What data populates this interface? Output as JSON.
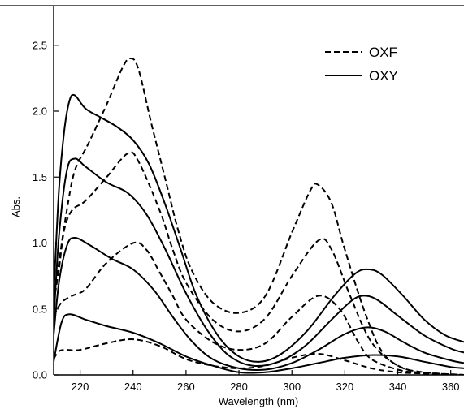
{
  "chart_data": {
    "type": "line",
    "title": "",
    "xlabel": "Wavelength (nm)",
    "ylabel": "Abs.",
    "xlim": [
      210,
      365
    ],
    "ylim": [
      0,
      2.8
    ],
    "xticks": [
      "220",
      "240",
      "260",
      "280",
      "300",
      "320",
      "340",
      "360"
    ],
    "yticks": [
      "0.0",
      "0.5",
      "1.0",
      "1.5",
      "2.0",
      "2.5"
    ],
    "legend": {
      "placement": "top-right",
      "entries": [
        {
          "label": "OXF",
          "style": "dashed"
        },
        {
          "label": "OXY",
          "style": "solid"
        }
      ]
    },
    "grid": false,
    "series": [
      {
        "group": "OXF",
        "style": "dashed",
        "points": [
          [
            210,
            0.12
          ],
          [
            212,
            0.18
          ],
          [
            215,
            0.19
          ],
          [
            220,
            0.19
          ],
          [
            230,
            0.24
          ],
          [
            240,
            0.27
          ],
          [
            250,
            0.22
          ],
          [
            260,
            0.12
          ],
          [
            270,
            0.07
          ],
          [
            280,
            0.05
          ],
          [
            290,
            0.07
          ],
          [
            300,
            0.13
          ],
          [
            310,
            0.16
          ],
          [
            320,
            0.11
          ],
          [
            330,
            0.05
          ],
          [
            340,
            0.02
          ],
          [
            350,
            0.01
          ],
          [
            360,
            0.0
          ],
          [
            365,
            0.0
          ]
        ]
      },
      {
        "group": "OXF",
        "style": "dashed",
        "points": [
          [
            210,
            0.45
          ],
          [
            213,
            0.55
          ],
          [
            217,
            0.6
          ],
          [
            222,
            0.65
          ],
          [
            230,
            0.85
          ],
          [
            240,
            1.0
          ],
          [
            245,
            0.95
          ],
          [
            250,
            0.78
          ],
          [
            255,
            0.6
          ],
          [
            260,
            0.42
          ],
          [
            270,
            0.25
          ],
          [
            280,
            0.19
          ],
          [
            290,
            0.24
          ],
          [
            300,
            0.44
          ],
          [
            310,
            0.6
          ],
          [
            318,
            0.5
          ],
          [
            325,
            0.25
          ],
          [
            330,
            0.12
          ],
          [
            340,
            0.04
          ],
          [
            350,
            0.01
          ],
          [
            365,
            0.0
          ]
        ]
      },
      {
        "group": "OXF",
        "style": "dashed",
        "points": [
          [
            210,
            0.55
          ],
          [
            212,
            0.8
          ],
          [
            214,
            1.1
          ],
          [
            217,
            1.25
          ],
          [
            222,
            1.32
          ],
          [
            230,
            1.5
          ],
          [
            238,
            1.68
          ],
          [
            242,
            1.62
          ],
          [
            250,
            1.25
          ],
          [
            255,
            0.95
          ],
          [
            260,
            0.7
          ],
          [
            270,
            0.42
          ],
          [
            280,
            0.33
          ],
          [
            290,
            0.43
          ],
          [
            300,
            0.75
          ],
          [
            310,
            1.02
          ],
          [
            315,
            0.95
          ],
          [
            322,
            0.6
          ],
          [
            330,
            0.25
          ],
          [
            340,
            0.07
          ],
          [
            350,
            0.02
          ],
          [
            365,
            0.0
          ]
        ]
      },
      {
        "group": "OXF",
        "style": "dashed",
        "points": [
          [
            210,
            0.55
          ],
          [
            212,
            0.85
          ],
          [
            215,
            1.25
          ],
          [
            218,
            1.55
          ],
          [
            223,
            1.75
          ],
          [
            230,
            2.05
          ],
          [
            236,
            2.33
          ],
          [
            239,
            2.4
          ],
          [
            242,
            2.32
          ],
          [
            247,
            1.9
          ],
          [
            252,
            1.5
          ],
          [
            257,
            1.1
          ],
          [
            262,
            0.8
          ],
          [
            270,
            0.55
          ],
          [
            280,
            0.47
          ],
          [
            290,
            0.6
          ],
          [
            300,
            1.08
          ],
          [
            307,
            1.4
          ],
          [
            310,
            1.44
          ],
          [
            315,
            1.3
          ],
          [
            320,
            0.95
          ],
          [
            328,
            0.45
          ],
          [
            335,
            0.15
          ],
          [
            345,
            0.03
          ],
          [
            355,
            0.01
          ],
          [
            365,
            0.0
          ]
        ]
      },
      {
        "group": "OXY",
        "style": "solid",
        "points": [
          [
            210,
            0.1
          ],
          [
            213,
            0.4
          ],
          [
            216,
            0.46
          ],
          [
            222,
            0.42
          ],
          [
            230,
            0.37
          ],
          [
            240,
            0.32
          ],
          [
            250,
            0.24
          ],
          [
            260,
            0.14
          ],
          [
            270,
            0.07
          ],
          [
            280,
            0.02
          ],
          [
            290,
            0.02
          ],
          [
            300,
            0.05
          ],
          [
            310,
            0.09
          ],
          [
            320,
            0.13
          ],
          [
            330,
            0.15
          ],
          [
            340,
            0.14
          ],
          [
            350,
            0.1
          ],
          [
            360,
            0.06
          ],
          [
            365,
            0.05
          ]
        ]
      },
      {
        "group": "OXY",
        "style": "solid",
        "points": [
          [
            210,
            0.3
          ],
          [
            212,
            0.7
          ],
          [
            215,
            0.98
          ],
          [
            218,
            1.04
          ],
          [
            224,
            0.98
          ],
          [
            232,
            0.88
          ],
          [
            240,
            0.8
          ],
          [
            248,
            0.64
          ],
          [
            255,
            0.44
          ],
          [
            262,
            0.26
          ],
          [
            270,
            0.12
          ],
          [
            280,
            0.05
          ],
          [
            290,
            0.04
          ],
          [
            300,
            0.09
          ],
          [
            310,
            0.19
          ],
          [
            320,
            0.31
          ],
          [
            328,
            0.36
          ],
          [
            335,
            0.33
          ],
          [
            342,
            0.25
          ],
          [
            350,
            0.17
          ],
          [
            360,
            0.11
          ],
          [
            365,
            0.09
          ]
        ]
      },
      {
        "group": "OXY",
        "style": "solid",
        "points": [
          [
            210,
            0.4
          ],
          [
            212,
            1.05
          ],
          [
            215,
            1.55
          ],
          [
            218,
            1.64
          ],
          [
            222,
            1.58
          ],
          [
            230,
            1.46
          ],
          [
            238,
            1.38
          ],
          [
            245,
            1.22
          ],
          [
            252,
            0.96
          ],
          [
            260,
            0.62
          ],
          [
            268,
            0.34
          ],
          [
            276,
            0.15
          ],
          [
            285,
            0.07
          ],
          [
            295,
            0.1
          ],
          [
            305,
            0.22
          ],
          [
            315,
            0.42
          ],
          [
            323,
            0.57
          ],
          [
            328,
            0.6
          ],
          [
            333,
            0.56
          ],
          [
            340,
            0.45
          ],
          [
            350,
            0.3
          ],
          [
            360,
            0.2
          ],
          [
            365,
            0.17
          ]
        ]
      },
      {
        "group": "OXY",
        "style": "solid",
        "points": [
          [
            210,
            0.6
          ],
          [
            212,
            1.4
          ],
          [
            214,
            1.85
          ],
          [
            216,
            2.08
          ],
          [
            218,
            2.12
          ],
          [
            222,
            2.02
          ],
          [
            228,
            1.95
          ],
          [
            234,
            1.88
          ],
          [
            240,
            1.78
          ],
          [
            246,
            1.6
          ],
          [
            252,
            1.3
          ],
          [
            258,
            0.95
          ],
          [
            264,
            0.6
          ],
          [
            272,
            0.3
          ],
          [
            280,
            0.14
          ],
          [
            288,
            0.1
          ],
          [
            296,
            0.16
          ],
          [
            306,
            0.34
          ],
          [
            316,
            0.6
          ],
          [
            324,
            0.77
          ],
          [
            329,
            0.8
          ],
          [
            334,
            0.76
          ],
          [
            342,
            0.6
          ],
          [
            350,
            0.42
          ],
          [
            358,
            0.3
          ],
          [
            365,
            0.25
          ]
        ]
      }
    ]
  }
}
